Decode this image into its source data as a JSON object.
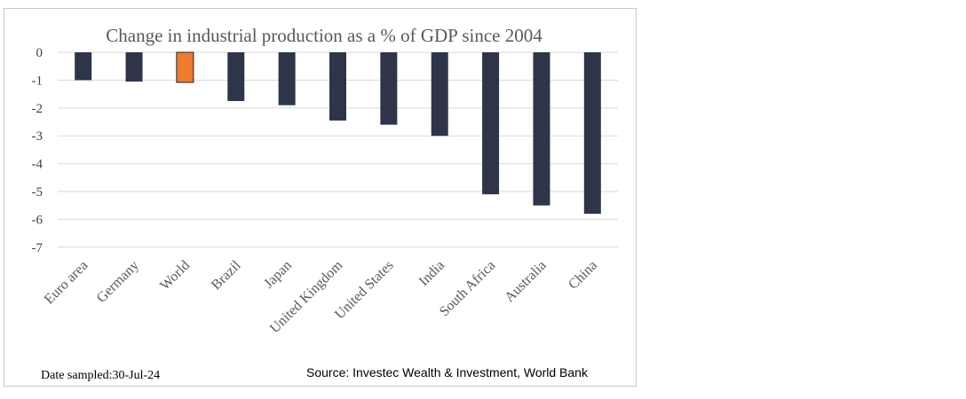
{
  "chart_data": {
    "type": "bar",
    "title": "Change in industrial production as a % of GDP since 2004",
    "categories": [
      "Euro area",
      "Germany",
      "World",
      "Brazil",
      "Japan",
      "United Kingdom",
      "United States",
      "India",
      "South Africa",
      "Australia",
      "China"
    ],
    "values": [
      -1.0,
      -1.05,
      -1.08,
      -1.75,
      -1.9,
      -2.45,
      -2.6,
      -3.0,
      -5.1,
      -5.5,
      -5.8
    ],
    "highlight_category": "World",
    "colors": {
      "default": "#2e3548",
      "highlight": "#ed7d31",
      "grid": "#d9d9d9"
    },
    "xlabel": "",
    "ylabel": "",
    "ylim": [
      -7,
      0
    ],
    "yticks": [
      0,
      -1,
      -2,
      -3,
      -4,
      -5,
      -6,
      -7
    ],
    "grid": true
  },
  "footer": {
    "date_sampled": "Date sampled:30-Jul-24",
    "source": "Source: Investec Wealth & Investment, World Bank"
  }
}
